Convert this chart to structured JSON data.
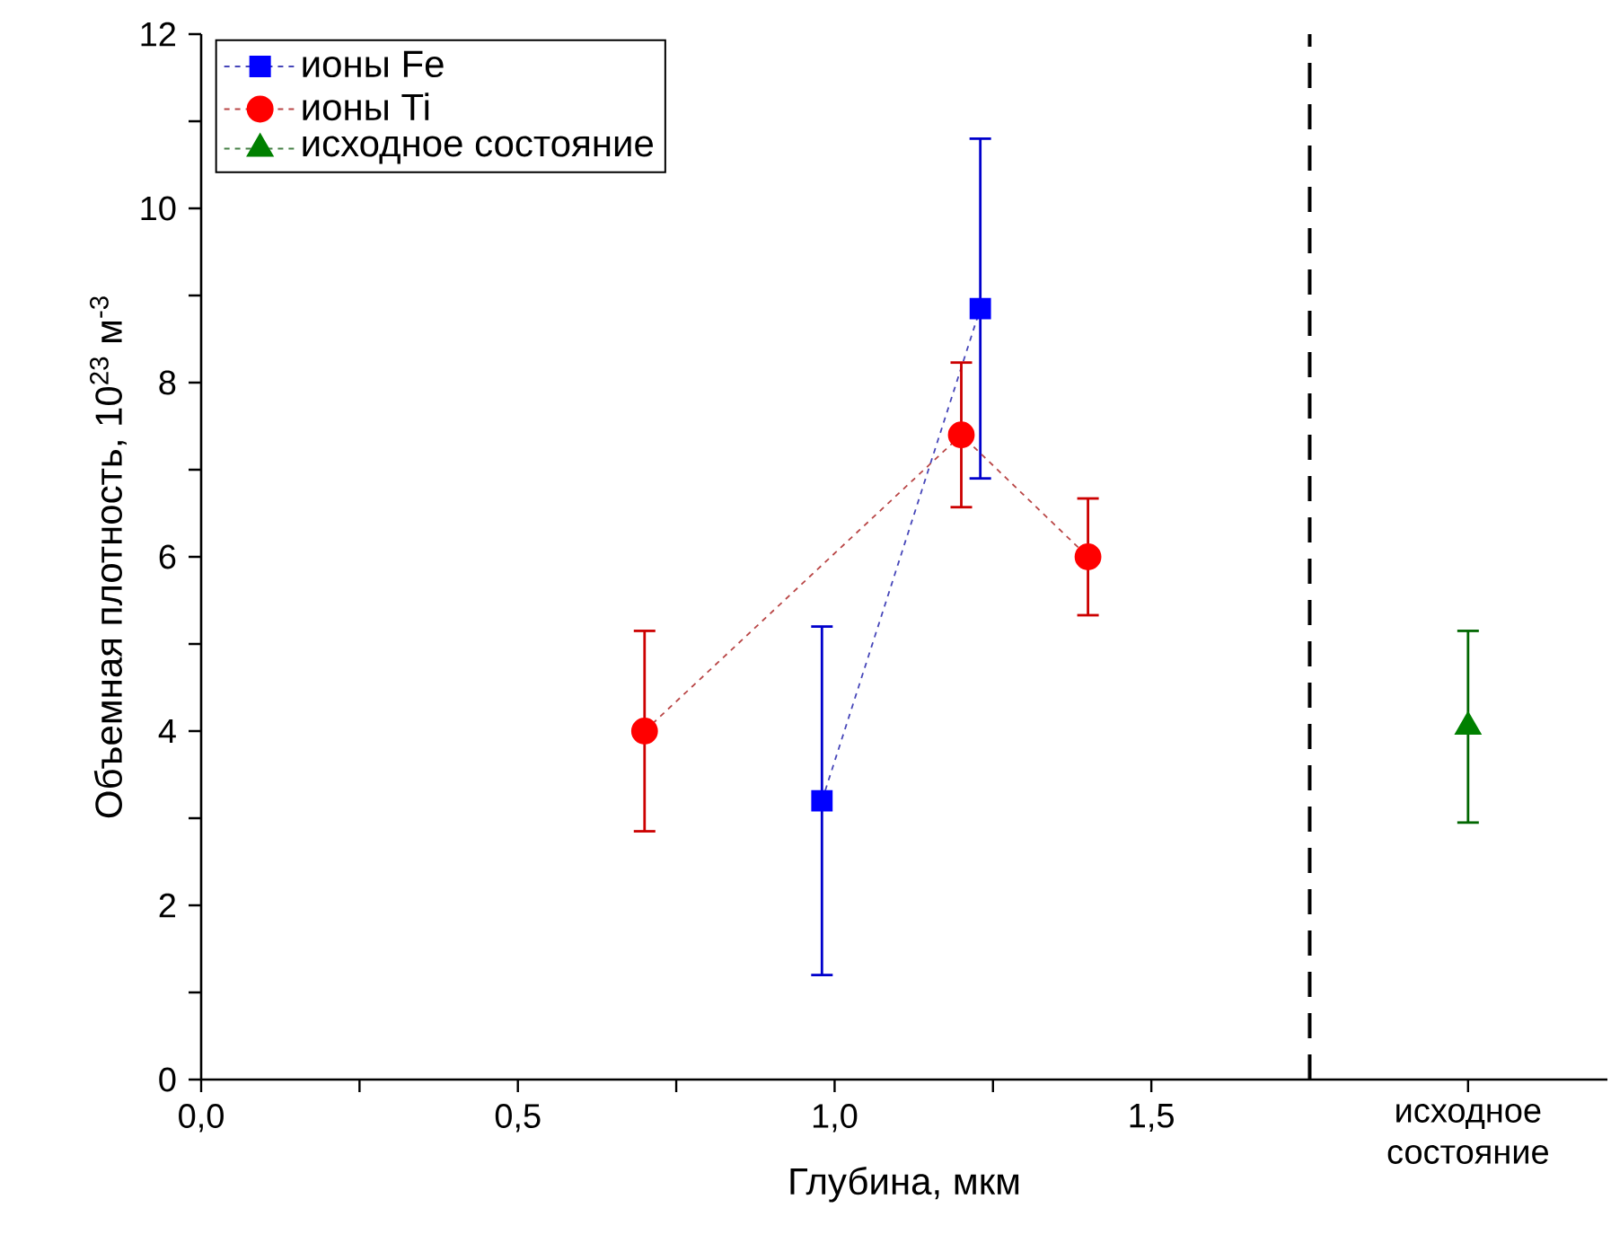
{
  "chart_data": {
    "type": "line",
    "xlabel": "Глубина, мкм",
    "ylabel": "Объемная плотность, 10$^{23}$ м$^{-3}$",
    "xlim": [
      0,
      2.22
    ],
    "ylim": [
      0,
      12
    ],
    "xticks": [
      {
        "value": 0,
        "label": "0,0"
      },
      {
        "value": 0.25,
        "label": null
      },
      {
        "value": 0.5,
        "label": "0,5"
      },
      {
        "value": 0.75,
        "label": null
      },
      {
        "value": 1,
        "label": "1,0"
      },
      {
        "value": 1.25,
        "label": null
      },
      {
        "value": 1.5,
        "label": "1,5"
      },
      {
        "value": 2,
        "label": "исходное состояние"
      }
    ],
    "yticks": [
      0,
      {
        "value": 1,
        "label": null
      },
      2,
      {
        "value": 3,
        "label": null
      },
      4,
      {
        "value": 5,
        "label": null
      },
      6,
      {
        "value": 7,
        "label": null
      },
      8,
      {
        "value": 9,
        "label": null
      },
      10,
      {
        "value": 11,
        "label": null
      },
      12
    ],
    "line_style": "dashed",
    "legend": "top left",
    "series": [
      {
        "name": "ионы Fe",
        "color": "#0000ff",
        "marker": "square",
        "x": [
          0.98,
          1.23
        ],
        "values": [
          3.2,
          8.85
        ],
        "errors": [
          2.0,
          1.95
        ]
      },
      {
        "name": "ионы Ti",
        "color": "#ff0000",
        "marker": "circle",
        "x": [
          0.7,
          1.2,
          1.4
        ],
        "values": [
          4.0,
          7.4,
          6.0
        ],
        "errors": [
          1.15,
          0.83,
          0.67
        ]
      },
      {
        "name": "исходное состояние",
        "color": "#008000",
        "marker": "triangle",
        "x": [
          2.0
        ],
        "values": [
          4.05
        ],
        "errors": [
          1.1
        ]
      }
    ],
    "ref_lines": [
      {
        "axis": "x",
        "value": 1.75,
        "color": "#000000",
        "line_style": "dashed"
      }
    ]
  }
}
